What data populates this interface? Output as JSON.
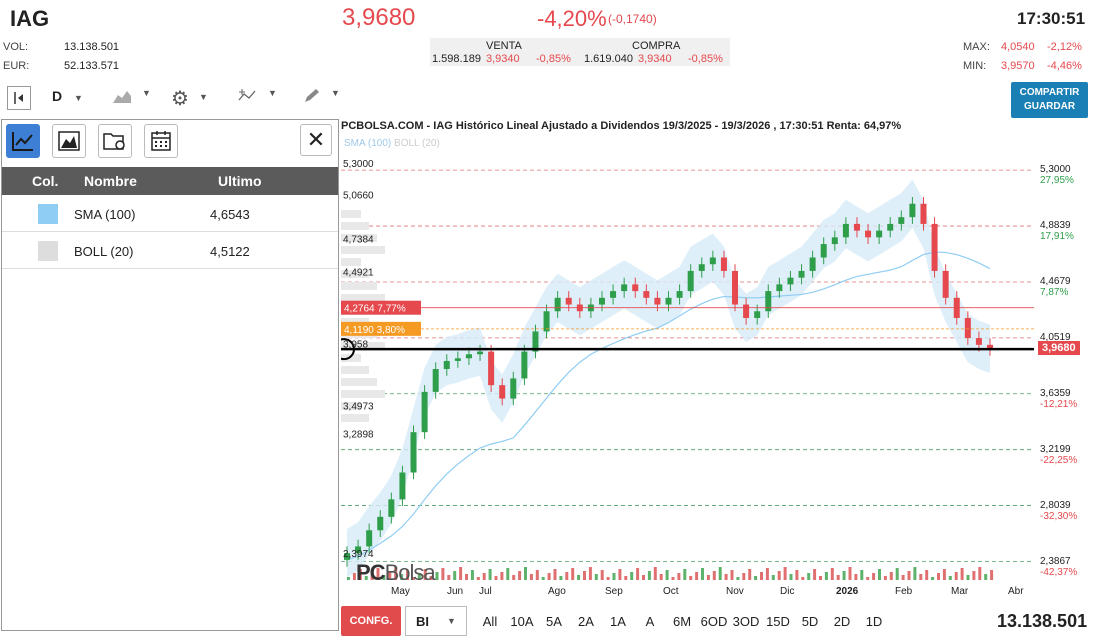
{
  "header": {
    "ticker": "IAG",
    "price": "3,9680",
    "change_pct": "-4,20%",
    "change_abs": "(-0,1740)",
    "time": "17:30:51",
    "vol_label": "VOL:",
    "vol_value": "13.138.501",
    "eur_label": "EUR:",
    "eur_value": "52.133.571",
    "venta_label": "VENTA",
    "compra_label": "COMPRA",
    "venta_qty": "1.598.189",
    "venta_price": "3,9340",
    "venta_pct": "-0,85%",
    "compra_qty": "1.619.040",
    "compra_price": "3,9340",
    "compra_pct": "-0,85%",
    "max_label": "MAX:",
    "max_value": "4,0540",
    "max_pct": "-2,12%",
    "min_label": "MIN:",
    "min_value": "3,9570",
    "min_pct": "-4,46%"
  },
  "toolbar": {
    "period": "D",
    "share_label_1": "COMPARTIR",
    "share_label_2": "GUARDAR"
  },
  "panel": {
    "col_header": "Col.",
    "name_header": "Nombre",
    "last_header": "Ultimo",
    "rows": [
      {
        "name": "SMA (100)",
        "value": "4,6543",
        "color": "#90cdf4"
      },
      {
        "name": "BOLL (20)",
        "value": "4,5122",
        "color": "#dddddd"
      }
    ]
  },
  "chart_data": {
    "type": "line",
    "title": "PCBOLSA.COM - IAG Histórico Lineal Ajustado a Dividendos 19/3/2025 - 19/3/2026 , 17:30:51 Renta: 64,97%",
    "legend": [
      "SMA (100)",
      "BOLL (20)"
    ],
    "x_labels": [
      "May",
      "Jun",
      "Jul",
      "Ago",
      "Sep",
      "Oct",
      "Nov",
      "Dic",
      "2026",
      "Feb",
      "Mar",
      "Abr"
    ],
    "left_labels": [
      "5,3000",
      "5,0660",
      "4,7384",
      "4,4921",
      "3,958",
      "3,4973",
      "3,2898",
      "2,3974"
    ],
    "right_labels": [
      {
        "price": "5,3000",
        "pct": "27,95%",
        "pos": true
      },
      {
        "price": "4,8839",
        "pct": "17,91%",
        "pos": true
      },
      {
        "price": "4,4679",
        "pct": "7,87%",
        "pos": true
      },
      {
        "price": "4,0519",
        "pct": "",
        "pos": true
      },
      {
        "price": "3,6359",
        "pct": "-12,21%",
        "pos": false
      },
      {
        "price": "3,2199",
        "pct": "-22,25%",
        "pos": false
      },
      {
        "price": "2,8039",
        "pct": "-32,30%",
        "pos": false
      },
      {
        "price": "2,3867",
        "pct": "-42,37%",
        "pos": false
      }
    ],
    "level_high": {
      "price": "4,2764",
      "pct": "7,77%"
    },
    "level_mid": {
      "price": "4,1190",
      "pct": "3,80%"
    },
    "last_price": "3,9680",
    "ylim": [
      2.25,
      5.45
    ],
    "close": [
      2.45,
      2.5,
      2.62,
      2.72,
      2.85,
      3.05,
      3.35,
      3.65,
      3.82,
      3.88,
      3.9,
      3.93,
      3.95,
      3.7,
      3.6,
      3.75,
      3.95,
      4.1,
      4.25,
      4.35,
      4.3,
      4.25,
      4.3,
      4.35,
      4.4,
      4.45,
      4.4,
      4.35,
      4.3,
      4.35,
      4.4,
      4.55,
      4.6,
      4.65,
      4.55,
      4.3,
      4.2,
      4.25,
      4.4,
      4.45,
      4.5,
      4.55,
      4.65,
      4.75,
      4.8,
      4.9,
      4.85,
      4.8,
      4.85,
      4.9,
      4.95,
      5.05,
      4.9,
      4.55,
      4.35,
      4.2,
      4.05,
      4.0,
      3.97
    ]
  },
  "watermark": "PCBolsa",
  "bottom": {
    "config": "CONFG.",
    "style": "BI",
    "ranges": [
      "All",
      "10A",
      "5A",
      "2A",
      "1A",
      "A",
      "6M",
      "6OD",
      "3OD",
      "15D",
      "5D",
      "2D",
      "1D"
    ],
    "volume": "13.138.501"
  }
}
